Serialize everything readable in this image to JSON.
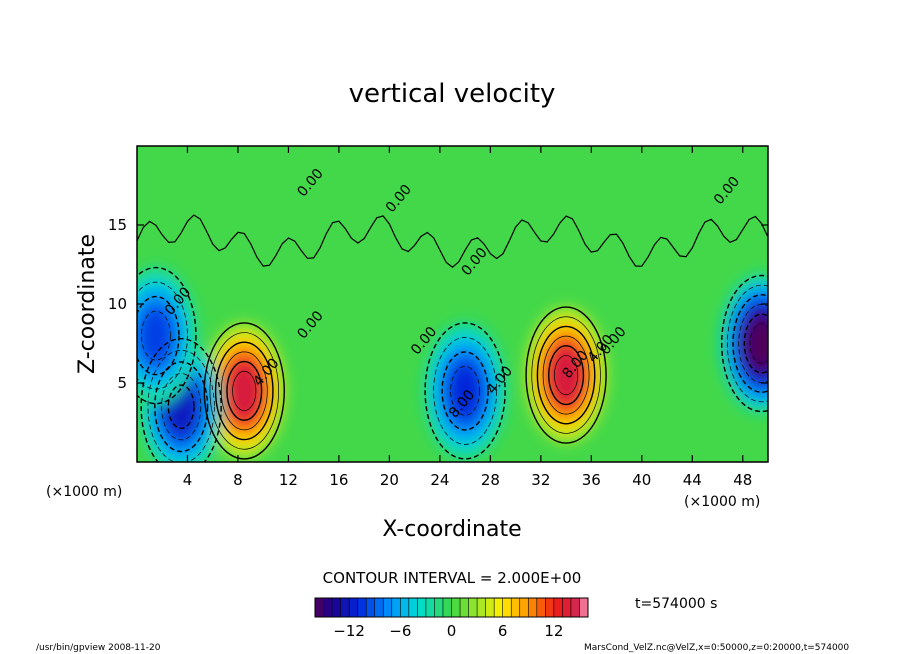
{
  "chart_data": {
    "type": "heatmap",
    "title": "vertical velocity",
    "xlabel": "X-coordinate",
    "ylabel": "Z-coordinate",
    "x_unit": "(×1000 m)",
    "y_unit": "(×1000 m)",
    "xlim": [
      0,
      50
    ],
    "ylim": [
      0,
      20
    ],
    "x_ticks": [
      4,
      8,
      12,
      16,
      20,
      24,
      28,
      32,
      36,
      40,
      44,
      48
    ],
    "y_ticks": [
      5,
      10,
      15
    ],
    "contour_interval_text": "CONTOUR INTERVAL = 2.000E+00",
    "time_text": "t=574000 s",
    "colorbar": {
      "range": [
        -16,
        16
      ],
      "ticks": [
        -12,
        -6,
        0,
        6,
        12
      ]
    },
    "contour_labels": [
      "0.00",
      "0.00",
      "0.00",
      "0.00",
      "0.00",
      "0.00",
      "0.00",
      "0.00",
      "4.00",
      "4.00",
      "4.00",
      "8.00",
      "8.00"
    ],
    "extrema": [
      {
        "x": 8.5,
        "z": 4.5,
        "value": 14,
        "sign": "positive"
      },
      {
        "x": 34,
        "z": 5.5,
        "value": 14,
        "sign": "positive"
      },
      {
        "x": 3.5,
        "z": 3.5,
        "value": -12,
        "sign": "negative"
      },
      {
        "x": 26,
        "z": 4.5,
        "value": -11,
        "sign": "negative"
      },
      {
        "x": 1.5,
        "z": 8,
        "value": -10,
        "sign": "negative"
      },
      {
        "x": 49.5,
        "z": 7.5,
        "value": -16,
        "sign": "negative"
      }
    ]
  },
  "footer": {
    "left": "/usr/bin/gpview  2008-11-20",
    "right": "MarsCond_VelZ.nc@VelZ,x=0:50000,z=0:20000,t=574000"
  }
}
